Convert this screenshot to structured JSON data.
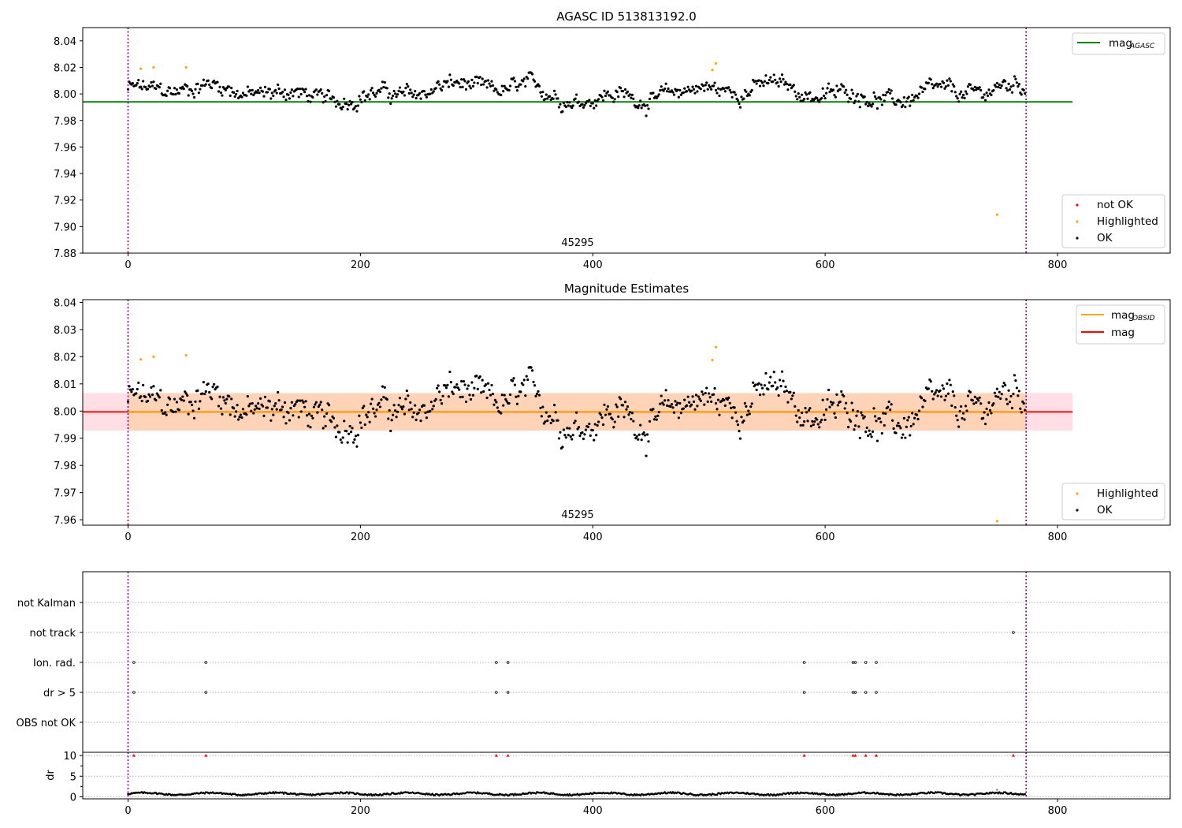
{
  "chart_data": [
    {
      "type": "scatter",
      "title": "AGASC ID 513813192.0",
      "xlim": [
        -39,
        897
      ],
      "ylim": [
        7.88,
        8.05
      ],
      "xticks": [
        0,
        200,
        400,
        600,
        800
      ],
      "yticks": [
        7.88,
        7.9,
        7.92,
        7.94,
        7.96,
        7.98,
        8.0,
        8.02,
        8.04
      ],
      "ytick_labels": [
        "7.88",
        "7.90",
        "7.92",
        "7.94",
        "7.96",
        "7.98",
        "8.00",
        "8.02",
        "8.04"
      ],
      "vlines": [
        0,
        773
      ],
      "obsid_label": {
        "text": "45295",
        "x": 386
      },
      "reference_lines": [
        {
          "name": "mag_AGASC",
          "y": 7.994,
          "xrange": [
            -39,
            813
          ],
          "color": "#008000"
        }
      ],
      "legend_top": [
        {
          "label": "mag",
          "sub": "AGASC",
          "color": "#008000"
        }
      ],
      "legend_bottom": [
        {
          "label": "not OK",
          "color": "#ff0000"
        },
        {
          "label": "Highlighted",
          "color": "#ffa500"
        },
        {
          "label": "OK",
          "color": "#000000"
        }
      ],
      "series_ok": {
        "n": 773,
        "base": 8.001,
        "amp": 0.0075
      },
      "highlighted": [
        [
          11,
          8.019
        ],
        [
          22,
          8.02
        ],
        [
          50,
          8.02
        ],
        [
          503,
          8.018
        ],
        [
          506,
          8.023
        ],
        [
          748,
          7.909
        ]
      ]
    },
    {
      "type": "scatter",
      "title": "Magnitude Estimates",
      "xlim": [
        -39,
        897
      ],
      "ylim": [
        7.958,
        8.041
      ],
      "xticks": [
        0,
        200,
        400,
        600,
        800
      ],
      "yticks": [
        7.96,
        7.97,
        7.98,
        7.99,
        8.0,
        8.01,
        8.02,
        8.03,
        8.04
      ],
      "ytick_labels": [
        "7.96",
        "7.97",
        "7.98",
        "7.99",
        "8.00",
        "8.01",
        "8.02",
        "8.03",
        "8.04"
      ],
      "vlines": [
        0,
        773
      ],
      "obsid_label": {
        "text": "45295",
        "x": 386
      },
      "reference_lines": [
        {
          "name": "mag",
          "y": 7.9997,
          "xrange": [
            -39,
            813
          ],
          "color": "#ff0000"
        },
        {
          "name": "mag_OBSID",
          "y": 7.9997,
          "xrange": [
            0,
            773
          ],
          "color": "#ffa500"
        }
      ],
      "bands": [
        {
          "y0": 7.9928,
          "y1": 8.0066,
          "xrange": [
            -39,
            813
          ],
          "color": "#ffc0cb"
        },
        {
          "y0": 7.9928,
          "y1": 8.0066,
          "xrange": [
            0,
            773
          ],
          "color": "#ffa500"
        }
      ],
      "legend_top": [
        {
          "label": "mag",
          "sub": "OBSID",
          "color": "#ffa500"
        },
        {
          "label": "mag",
          "sub": "",
          "color": "#ff0000"
        }
      ],
      "legend_bottom": [
        {
          "label": "Highlighted",
          "color": "#ffa500"
        },
        {
          "label": "OK",
          "color": "#000000"
        }
      ],
      "series_ok": {
        "n": 773,
        "base": 8.001,
        "amp": 0.0075
      },
      "highlighted": [
        [
          11,
          8.019
        ],
        [
          22,
          8.02
        ],
        [
          50,
          8.0205
        ],
        [
          503,
          8.0188
        ],
        [
          506,
          8.0235
        ],
        [
          748,
          7.9595
        ]
      ]
    },
    {
      "type": "scatter",
      "title": "",
      "xlim": [
        -39,
        897
      ],
      "categories": [
        "not Kalman",
        "not track",
        "Ion. rad.",
        "dr > 5",
        "OBS not OK"
      ],
      "flags": {
        "not track": [
          762
        ],
        "Ion. rad.": [
          5,
          67,
          317,
          327,
          582,
          624,
          626,
          635,
          644
        ],
        "dr > 5": [
          5,
          67,
          317,
          327,
          582,
          624,
          626,
          635,
          644
        ]
      }
    },
    {
      "type": "scatter",
      "title": "",
      "xlim": [
        -39,
        897
      ],
      "ylim": [
        -0.5,
        10.8
      ],
      "ylabel": "dr",
      "xticks": [
        0,
        200,
        400,
        600,
        800
      ],
      "yticks": [
        0,
        5,
        10
      ],
      "ytick_labels": [
        "0",
        "5",
        "10"
      ],
      "vlines": [
        0,
        773
      ],
      "n": 773,
      "clipped_markers": [
        5,
        67,
        317,
        327,
        582,
        624,
        626,
        635,
        644,
        762
      ],
      "outlier": [
        748,
        1.7
      ]
    }
  ]
}
